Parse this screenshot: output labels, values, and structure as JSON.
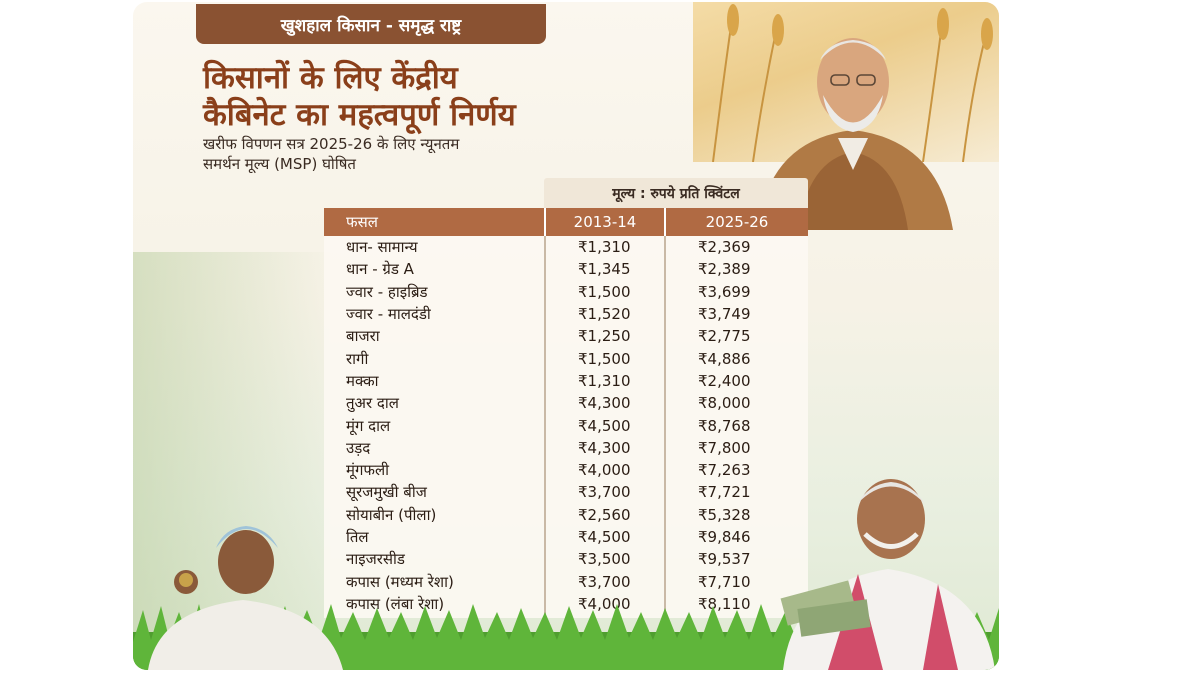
{
  "tag": "खुशहाल किसान - समृद्ध राष्ट्र",
  "headline": {
    "line1": "किसानों के लिए केंद्रीय",
    "line2": "कैबिनेट का महत्वपूर्ण निर्णय"
  },
  "subhead": {
    "line1": "खरीफ विपणन सत्र 2025-26 के लिए न्यूनतम",
    "line2": "समर्थन मूल्य (MSP) घोषित"
  },
  "table": {
    "unit_label": "मूल्य : रुपये प्रति क्विंटल",
    "headers": {
      "crop": "फसल",
      "col1": "2013-14",
      "col2": "2025-26"
    },
    "rows": [
      {
        "crop": "धान- सामान्य",
        "v1": "₹1,310",
        "v2": "₹2,369"
      },
      {
        "crop": "धान - ग्रेड A",
        "v1": "₹1,345",
        "v2": "₹2,389"
      },
      {
        "crop": "ज्वार - हाइब्रिड",
        "v1": "₹1,500",
        "v2": "₹3,699"
      },
      {
        "crop": "ज्वार - मालदंडी",
        "v1": "₹1,520",
        "v2": "₹3,749"
      },
      {
        "crop": "बाजरा",
        "v1": "₹1,250",
        "v2": "₹2,775"
      },
      {
        "crop": "रागी",
        "v1": "₹1,500",
        "v2": "₹4,886"
      },
      {
        "crop": "मक्का",
        "v1": "₹1,310",
        "v2": "₹2,400"
      },
      {
        "crop": "तुअर दाल",
        "v1": "₹4,300",
        "v2": "₹8,000"
      },
      {
        "crop": "मूंग दाल",
        "v1": "₹4,500",
        "v2": "₹8,768"
      },
      {
        "crop": "उड़द",
        "v1": "₹4,300",
        "v2": "₹7,800"
      },
      {
        "crop": "मूंगफली",
        "v1": "₹4,000",
        "v2": "₹7,263"
      },
      {
        "crop": "सूरजमुखी बीज",
        "v1": "₹3,700",
        "v2": "₹7,721"
      },
      {
        "crop": "सोयाबीन (पीला)",
        "v1": "₹2,560",
        "v2": "₹5,328"
      },
      {
        "crop": "तिल",
        "v1": "₹4,500",
        "v2": "₹9,846"
      },
      {
        "crop": "नाइजरसीड",
        "v1": "₹3,500",
        "v2": "₹9,537"
      },
      {
        "crop": "कपास (मध्यम रेशा)",
        "v1": "₹3,700",
        "v2": "₹7,710"
      },
      {
        "crop": "कपास (लंबा रेशा)",
        "v1": "₹4,000",
        "v2": "₹8,110"
      }
    ]
  },
  "colors": {
    "tag_bg": "#8a5232",
    "headline": "#8a3f1a",
    "table_header_bg": "#b06a43",
    "unit_header_bg": "#f0e7d8"
  }
}
